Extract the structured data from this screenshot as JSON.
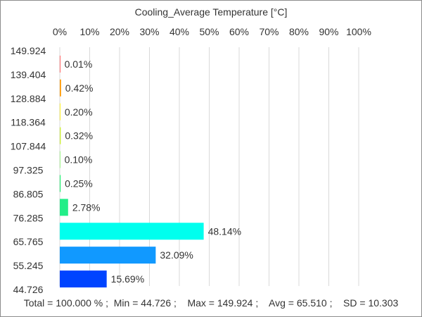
{
  "chart_data": {
    "type": "bar",
    "orientation": "horizontal",
    "title": "Cooling_Average Temperature [°C]",
    "x_axis": {
      "ticks": [
        "0%",
        "10%",
        "20%",
        "30%",
        "40%",
        "50%",
        "60%",
        "70%",
        "80%",
        "90%",
        "100%"
      ],
      "range": [
        0,
        100
      ],
      "position": "top",
      "grid": true
    },
    "y_axis": {
      "ticks": [
        "149.924",
        "139.404",
        "128.884",
        "118.364",
        "107.844",
        "97.325",
        "86.805",
        "76.285",
        "65.765",
        "55.245",
        "44.726"
      ]
    },
    "bins": [
      {
        "from": 139.404,
        "to": 149.924,
        "value": 0.01,
        "label": "0.01%",
        "color": "#ff0000"
      },
      {
        "from": 128.884,
        "to": 139.404,
        "value": 0.42,
        "label": "0.42%",
        "color": "#ff9900"
      },
      {
        "from": 118.364,
        "to": 128.884,
        "value": 0.2,
        "label": "0.20%",
        "color": "#ffee00"
      },
      {
        "from": 107.844,
        "to": 118.364,
        "value": 0.32,
        "label": "0.32%",
        "color": "#ccee33"
      },
      {
        "from": 97.325,
        "to": 107.844,
        "value": 0.1,
        "label": "0.10%",
        "color": "#66ee44"
      },
      {
        "from": 86.805,
        "to": 97.325,
        "value": 0.25,
        "label": "0.25%",
        "color": "#11ee66"
      },
      {
        "from": 76.285,
        "to": 86.805,
        "value": 2.78,
        "label": "2.78%",
        "color": "#22ee88"
      },
      {
        "from": 65.765,
        "to": 76.285,
        "value": 48.14,
        "label": "48.14%",
        "color": "#00ffee"
      },
      {
        "from": 55.245,
        "to": 65.765,
        "value": 32.09,
        "label": "32.09%",
        "color": "#1199ff"
      },
      {
        "from": 44.726,
        "to": 55.245,
        "value": 15.69,
        "label": "15.69%",
        "color": "#0044ff"
      }
    ],
    "stats": {
      "total": "Total = 100.000 %",
      "min": "Min = 44.726",
      "max": "Max = 149.924",
      "avg": "Avg = 65.510",
      "sd": "SD = 10.303"
    }
  },
  "colors": {
    "grid": "#d9d9d9",
    "text": "#333333",
    "frame": "#8c8c8c"
  }
}
